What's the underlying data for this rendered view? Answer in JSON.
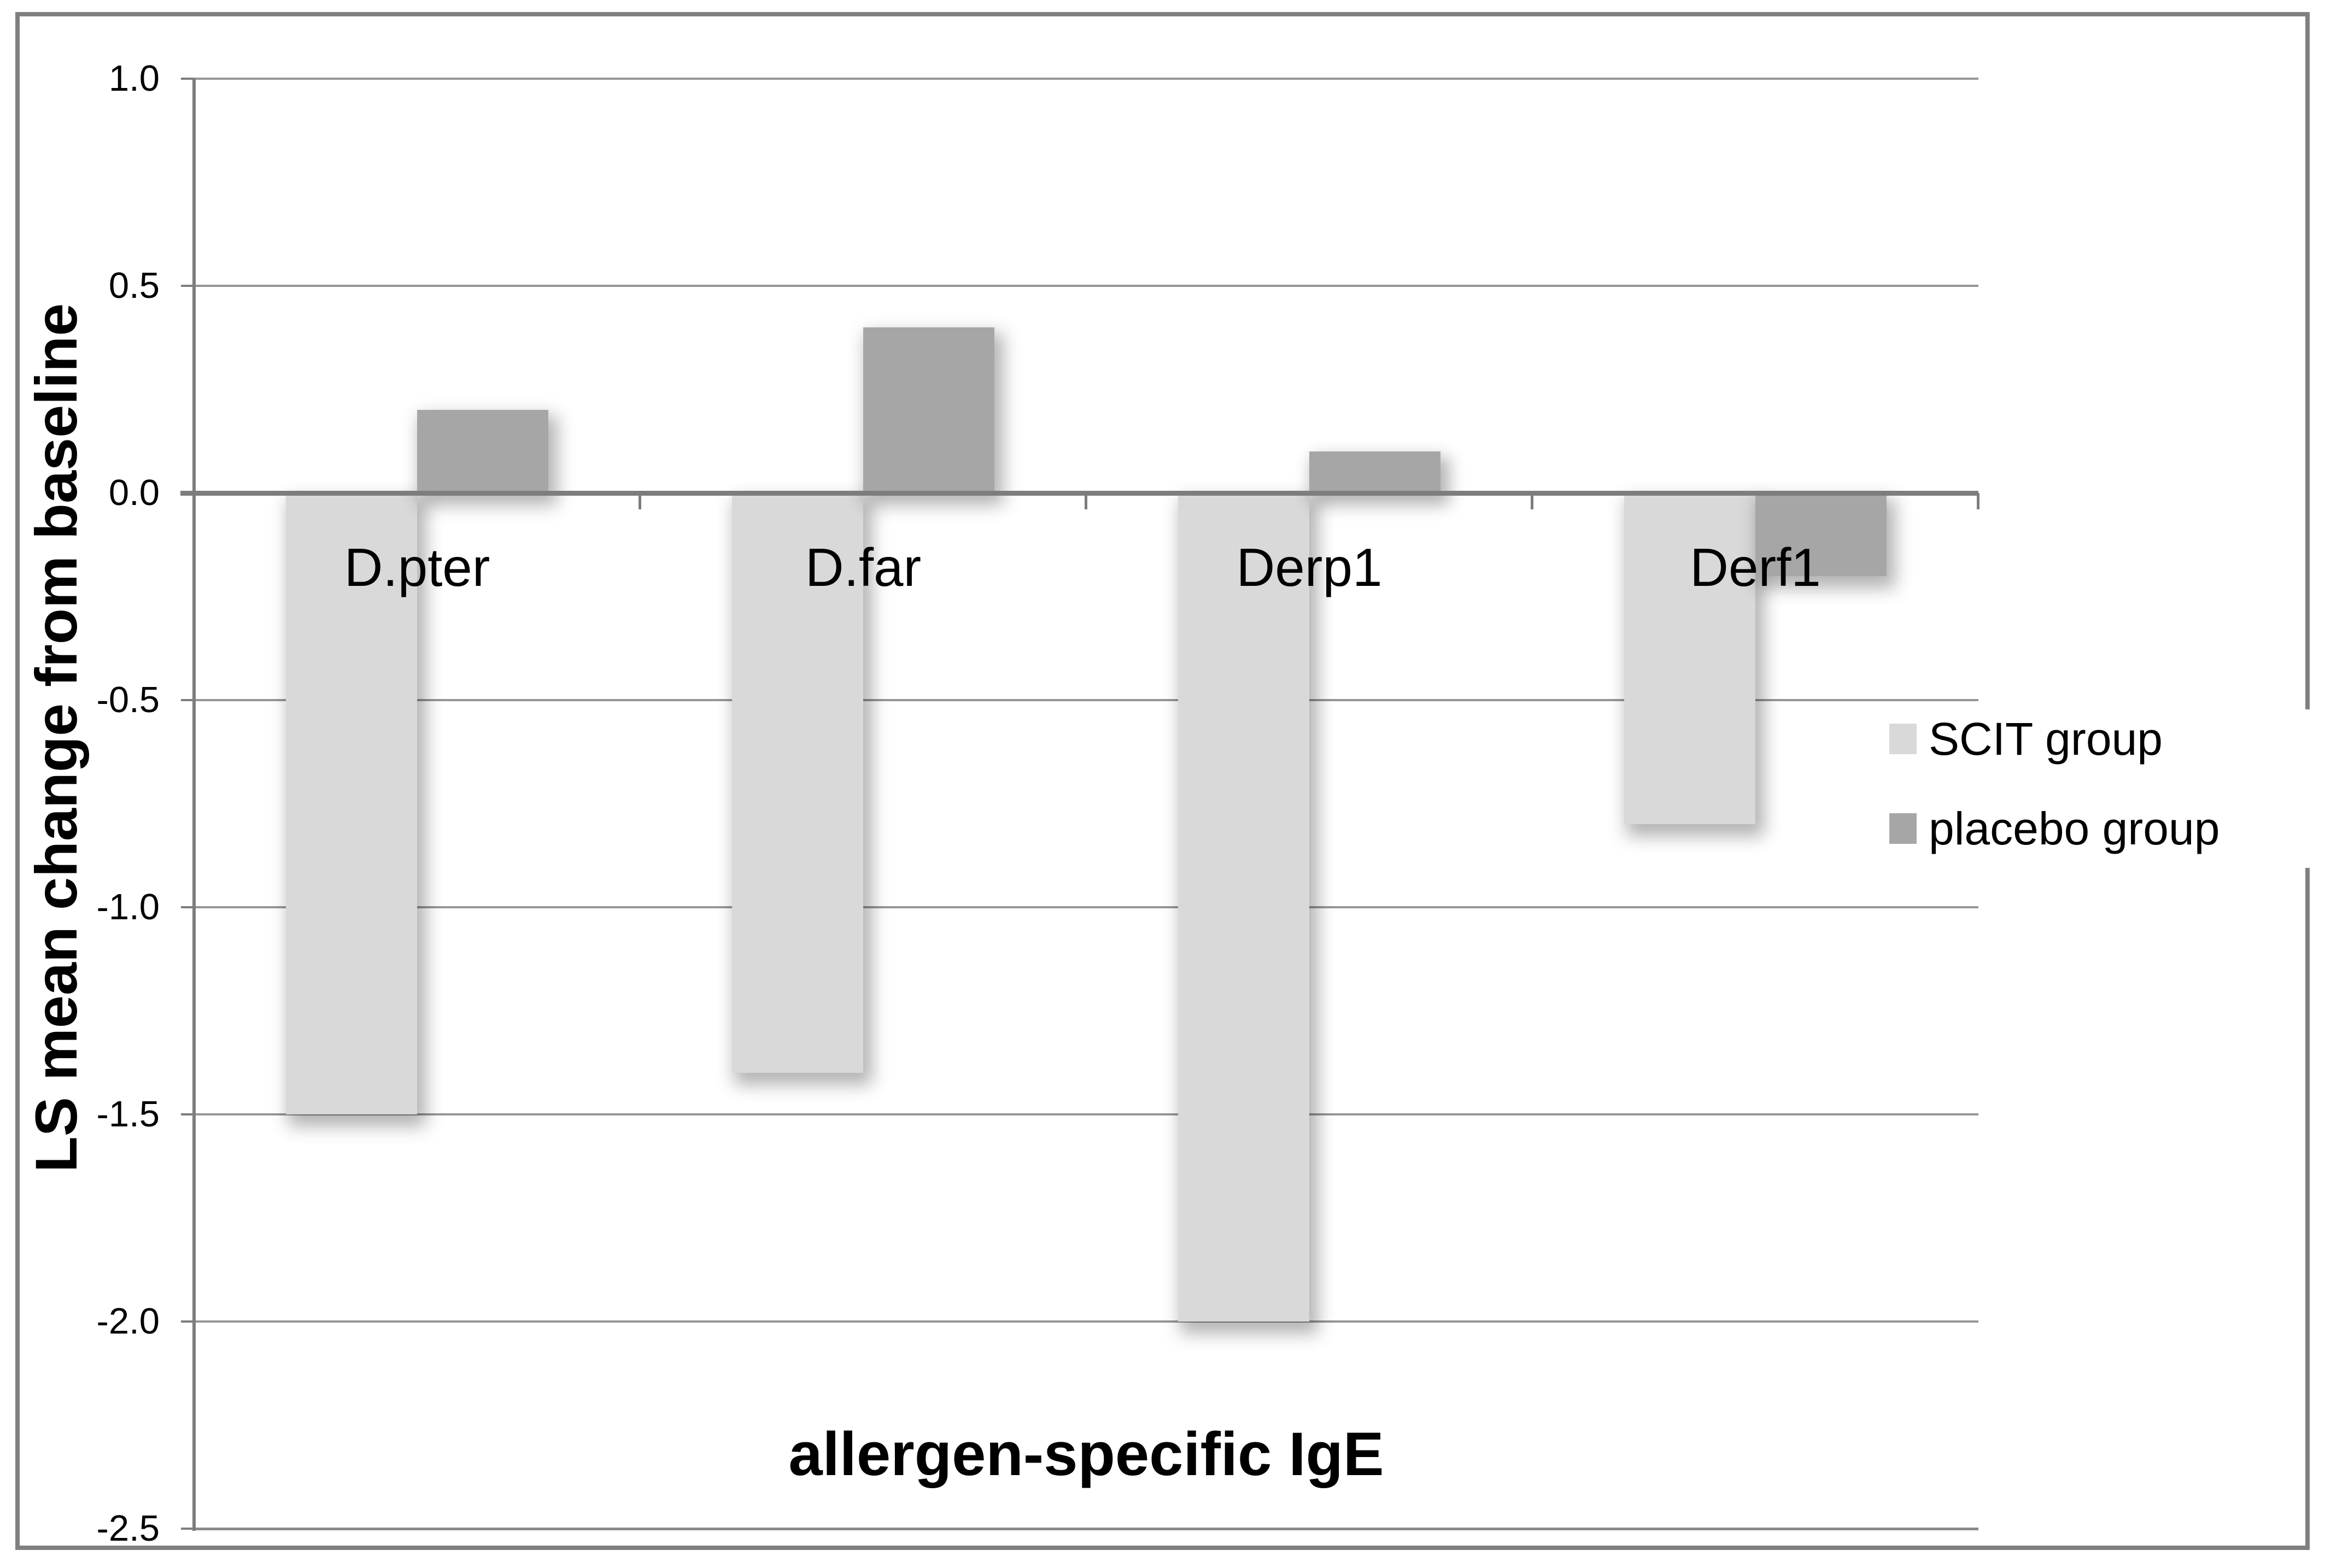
{
  "chart_data": {
    "type": "bar",
    "title": "",
    "categories": [
      "D.pter",
      "D.far",
      "Derp1",
      "Derf1"
    ],
    "series": [
      {
        "name": "SCIT group",
        "color": "#d9d9d9",
        "values": [
          -1.5,
          -1.4,
          -2.0,
          -0.8
        ]
      },
      {
        "name": "placebo group",
        "color": "#a6a6a6",
        "values": [
          0.2,
          0.4,
          0.1,
          -0.2
        ]
      }
    ],
    "xlabel": "allergen-specific IgE",
    "ylabel": "LS mean change from baseline",
    "ylim": [
      -2.5,
      1.0
    ],
    "ytick_step": 0.5,
    "ytick_labels": [
      "1.0",
      "0.5",
      "0.0",
      "-0.5",
      "-1.0",
      "-1.5",
      "-2.0",
      "-2.5"
    ],
    "grid": "on",
    "legend_position": "right-middle",
    "legend_items": [
      "SCIT group",
      "placebo group"
    ]
  },
  "colors": {
    "scit_bar": "#d9d9d9",
    "placebo_bar": "#a6a6a6",
    "gridline": "#969696",
    "axis_line": "#7d7d7d",
    "figure_border": "#808080",
    "text": "#000000",
    "background": "#ffffff"
  }
}
